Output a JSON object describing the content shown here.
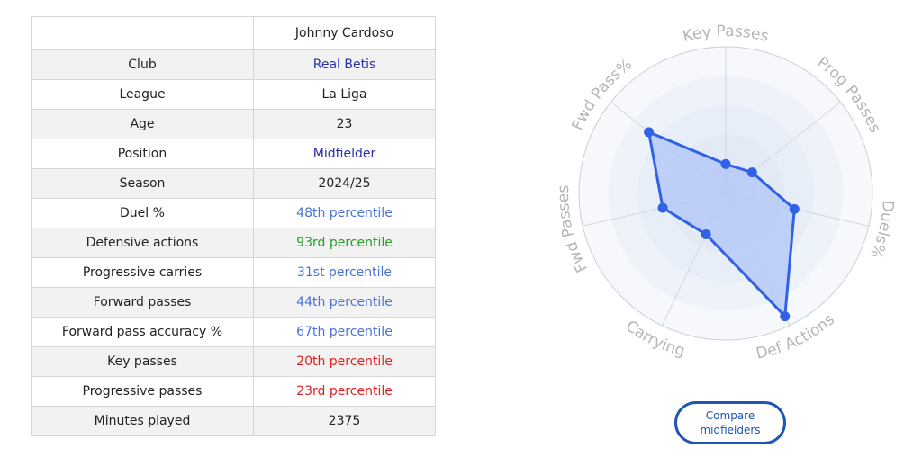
{
  "player": {
    "name": "Johnny Cardoso"
  },
  "table": {
    "rows": [
      {
        "label": "Club",
        "value": "Real Betis",
        "color": "#2b2fa8"
      },
      {
        "label": "League",
        "value": "La Liga",
        "color": "#222222"
      },
      {
        "label": "Age",
        "value": "23",
        "color": "#222222"
      },
      {
        "label": "Position",
        "value": "Midfielder",
        "color": "#2b2fa8"
      },
      {
        "label": "Season",
        "value": "2024/25",
        "color": "#222222"
      },
      {
        "label": "Duel %",
        "value": "48th percentile",
        "color": "#4a73d6"
      },
      {
        "label": "Defensive actions",
        "value": "93rd percentile",
        "color": "#2a9a2a"
      },
      {
        "label": "Progressive carries",
        "value": "31st percentile",
        "color": "#4a73d6"
      },
      {
        "label": "Forward passes",
        "value": "44th percentile",
        "color": "#4a73d6"
      },
      {
        "label": "Forward pass accuracy %",
        "value": "67th percentile",
        "color": "#4a73d6"
      },
      {
        "label": "Key passes",
        "value": "20th percentile",
        "color": "#e02020"
      },
      {
        "label": "Progressive passes",
        "value": "23rd percentile",
        "color": "#e02020"
      },
      {
        "label": "Minutes played",
        "value": "2375",
        "color": "#222222"
      }
    ]
  },
  "chart_data": {
    "type": "radar",
    "axes": [
      "Key Passes",
      "Prog Passes",
      "Duels%",
      "Def Actions",
      "Carrying",
      "Fwd Passes",
      "Fwd Pass%"
    ],
    "values": [
      20,
      23,
      48,
      93,
      31,
      44,
      67
    ],
    "range": [
      0,
      100
    ],
    "fill_color": "#b3c7f7",
    "line_color": "#2f62e6"
  },
  "compare_button": {
    "label": "Compare midfielders"
  }
}
